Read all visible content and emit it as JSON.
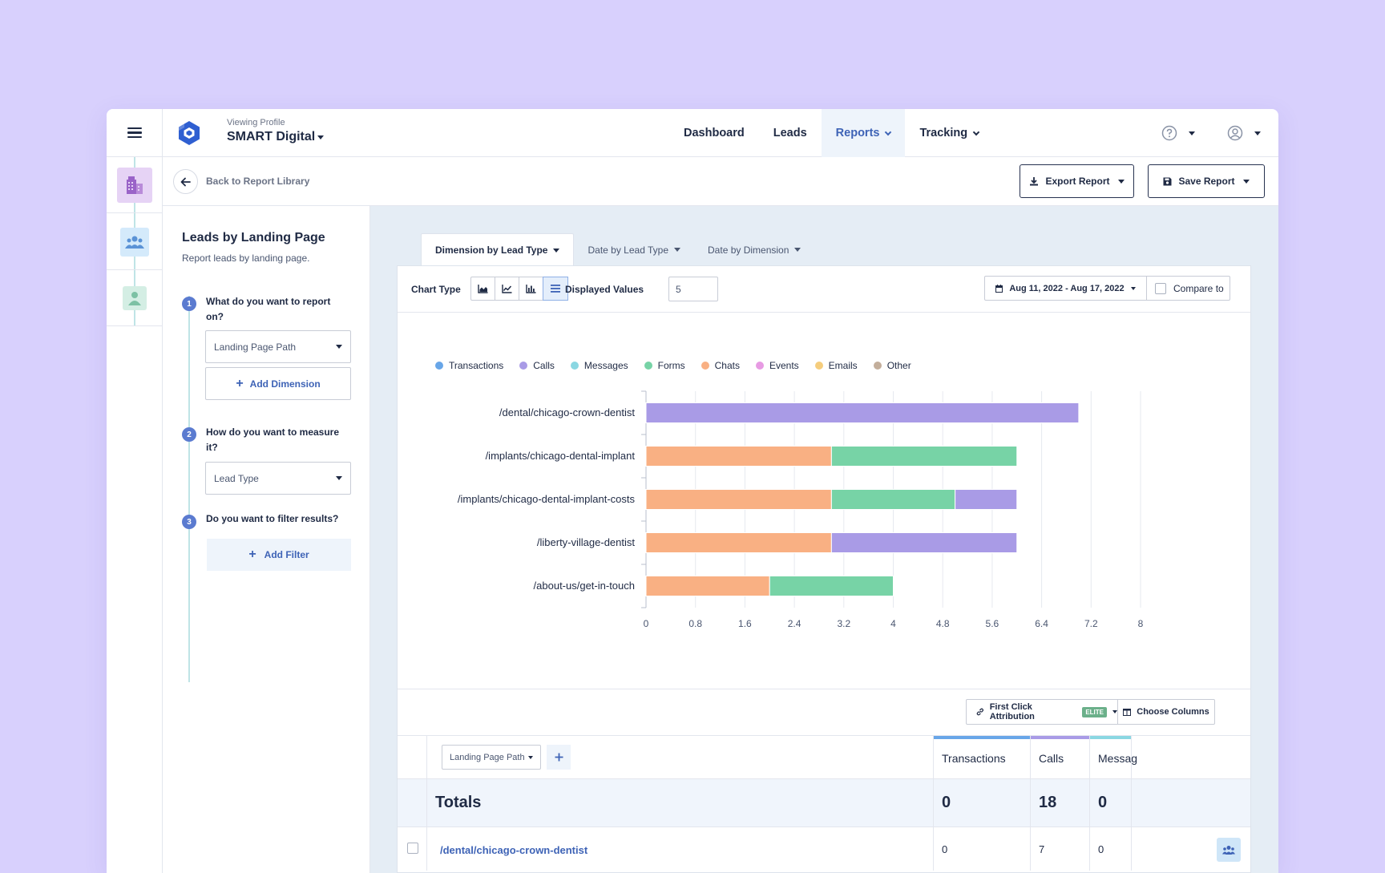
{
  "profile": {
    "label": "Viewing Profile",
    "name": "SMART Digital"
  },
  "nav": {
    "dashboard": "Dashboard",
    "leads": "Leads",
    "reports": "Reports",
    "tracking": "Tracking"
  },
  "subbar": {
    "back_label": "Back to Report Library",
    "export_label": "Export Report",
    "save_label": "Save Report"
  },
  "builder": {
    "title": "Leads by Landing Page",
    "subtitle": "Report leads by landing page.",
    "steps": [
      {
        "num": "1",
        "question": "What do you want to report on?",
        "select": "Landing Page Path",
        "action": "Add Dimension"
      },
      {
        "num": "2",
        "question": "How do you want to measure it?",
        "select": "Lead Type"
      },
      {
        "num": "3",
        "question": "Do you want to filter results?",
        "action": "Add Filter"
      }
    ]
  },
  "tabs": [
    "Dimension by Lead Type",
    "Date by Lead Type",
    "Date by Dimension"
  ],
  "controls": {
    "chart_type_label": "Chart Type",
    "displayed_values_label": "Displayed Values",
    "displayed_values": "5",
    "date_range": "Aug 11, 2022 - Aug 17, 2022",
    "compare_label": "Compare to"
  },
  "colors": {
    "Transactions": "#68a6e8",
    "Calls": "#a99be6",
    "Messages": "#8ad7e2",
    "Forms": "#77d3a6",
    "Chats": "#f9b083",
    "Events": "#e79be3",
    "Emails": "#f5cd7d",
    "Other": "#c3ae9b",
    "accent": "#3e63b6"
  },
  "chart_data": {
    "type": "bar",
    "orientation": "horizontal",
    "stacked": true,
    "categories": [
      "/dental/chicago-crown-dentist",
      "/implants/chicago-dental-implant",
      "/implants/chicago-dental-implant-costs",
      "/liberty-village-dentist",
      "/about-us/get-in-touch"
    ],
    "series": [
      {
        "name": "Chats",
        "values": [
          0,
          3,
          3,
          3,
          2
        ]
      },
      {
        "name": "Forms",
        "values": [
          0,
          3,
          2,
          0,
          2
        ]
      },
      {
        "name": "Calls",
        "values": [
          7,
          0,
          1,
          3,
          0
        ]
      }
    ],
    "legend": [
      "Transactions",
      "Calls",
      "Messages",
      "Forms",
      "Chats",
      "Events",
      "Emails",
      "Other"
    ],
    "xlim": [
      0,
      8
    ],
    "xticks": [
      "0",
      "0.8",
      "1.6",
      "2.4",
      "3.2",
      "4",
      "4.8",
      "5.6",
      "6.4",
      "7.2",
      "8"
    ],
    "legend_position": "top-left",
    "grid": true
  },
  "attribution": {
    "label": "First Click Attribution",
    "badge": "ELITE",
    "columns_label": "Choose Columns"
  },
  "table": {
    "dimension_select": "Landing Page Path",
    "headers": [
      "Transactions",
      "Calls",
      "Messag"
    ],
    "totals_label": "Totals",
    "totals": [
      "0",
      "18",
      "0"
    ],
    "rows": [
      {
        "path": "/dental/chicago-crown-dentist",
        "values": [
          "0",
          "7",
          "0"
        ]
      }
    ]
  }
}
